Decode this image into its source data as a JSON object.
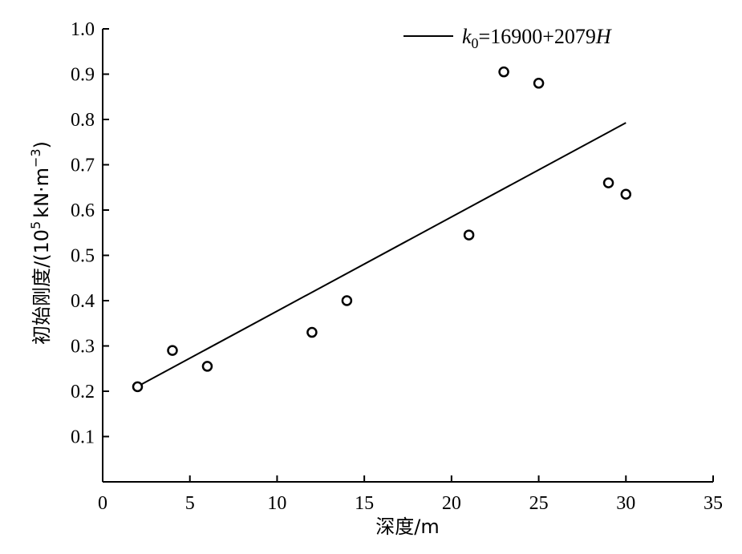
{
  "chart_data": {
    "type": "scatter",
    "title": "",
    "xlabel": "深度/m",
    "ylabel_parts": {
      "main": "初始刚度/(10",
      "exp1": "5",
      "mid": "kN·m",
      "exp2": "−3",
      "end": ")"
    },
    "xlim": [
      0,
      35
    ],
    "ylim": [
      0,
      1.0
    ],
    "xticks": [
      0,
      5,
      10,
      15,
      20,
      25,
      30,
      35
    ],
    "yticks": [
      0.1,
      0.2,
      0.3,
      0.4,
      0.5,
      0.6,
      0.7,
      0.8,
      0.9,
      1.0
    ],
    "points": [
      {
        "x": 2,
        "y": 0.21
      },
      {
        "x": 4,
        "y": 0.29
      },
      {
        "x": 6,
        "y": 0.255
      },
      {
        "x": 12,
        "y": 0.33
      },
      {
        "x": 14,
        "y": 0.4
      },
      {
        "x": 21,
        "y": 0.545
      },
      {
        "x": 23,
        "y": 0.905
      },
      {
        "x": 25,
        "y": 0.88
      },
      {
        "x": 29,
        "y": 0.66
      },
      {
        "x": 30,
        "y": 0.635
      }
    ],
    "fit": {
      "intercept": 16900,
      "slope": 2079,
      "x_range": [
        2,
        30
      ],
      "legend_parts": {
        "k": "k",
        "sub": "0",
        "eq": "=16900+2079",
        "var": "H"
      }
    },
    "grid": false,
    "legend_position": "top-right"
  }
}
